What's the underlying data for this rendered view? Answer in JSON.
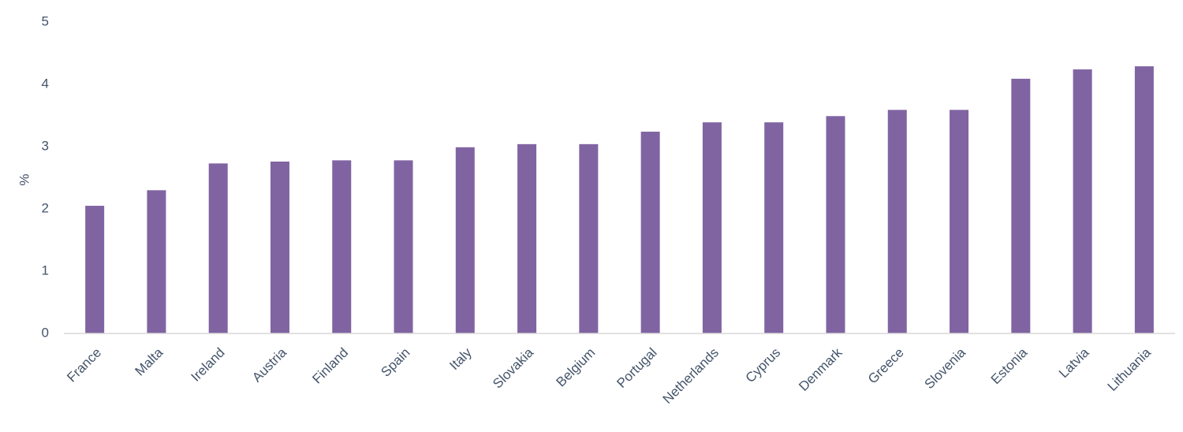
{
  "chart_data": {
    "type": "bar",
    "y_label": "%",
    "categories": [
      "France",
      "Malta",
      "Ireland",
      "Austria",
      "Finland",
      "Spain",
      "Italy",
      "Slovakia",
      "Belgium",
      "Portugal",
      "Netherlands",
      "Cyprus",
      "Denmark",
      "Greece",
      "Slovenia",
      "Estonia",
      "Latvia",
      "Lithuania"
    ],
    "values": [
      2.05,
      2.3,
      2.73,
      2.76,
      2.78,
      2.78,
      2.99,
      3.04,
      3.04,
      3.24,
      3.39,
      3.39,
      3.49,
      3.59,
      3.59,
      4.09,
      4.24,
      4.29
    ],
    "color": "#8064a2",
    "ylim": [
      0,
      5
    ],
    "yticks": [
      0,
      1,
      2,
      3,
      4,
      5
    ],
    "grid": false
  }
}
